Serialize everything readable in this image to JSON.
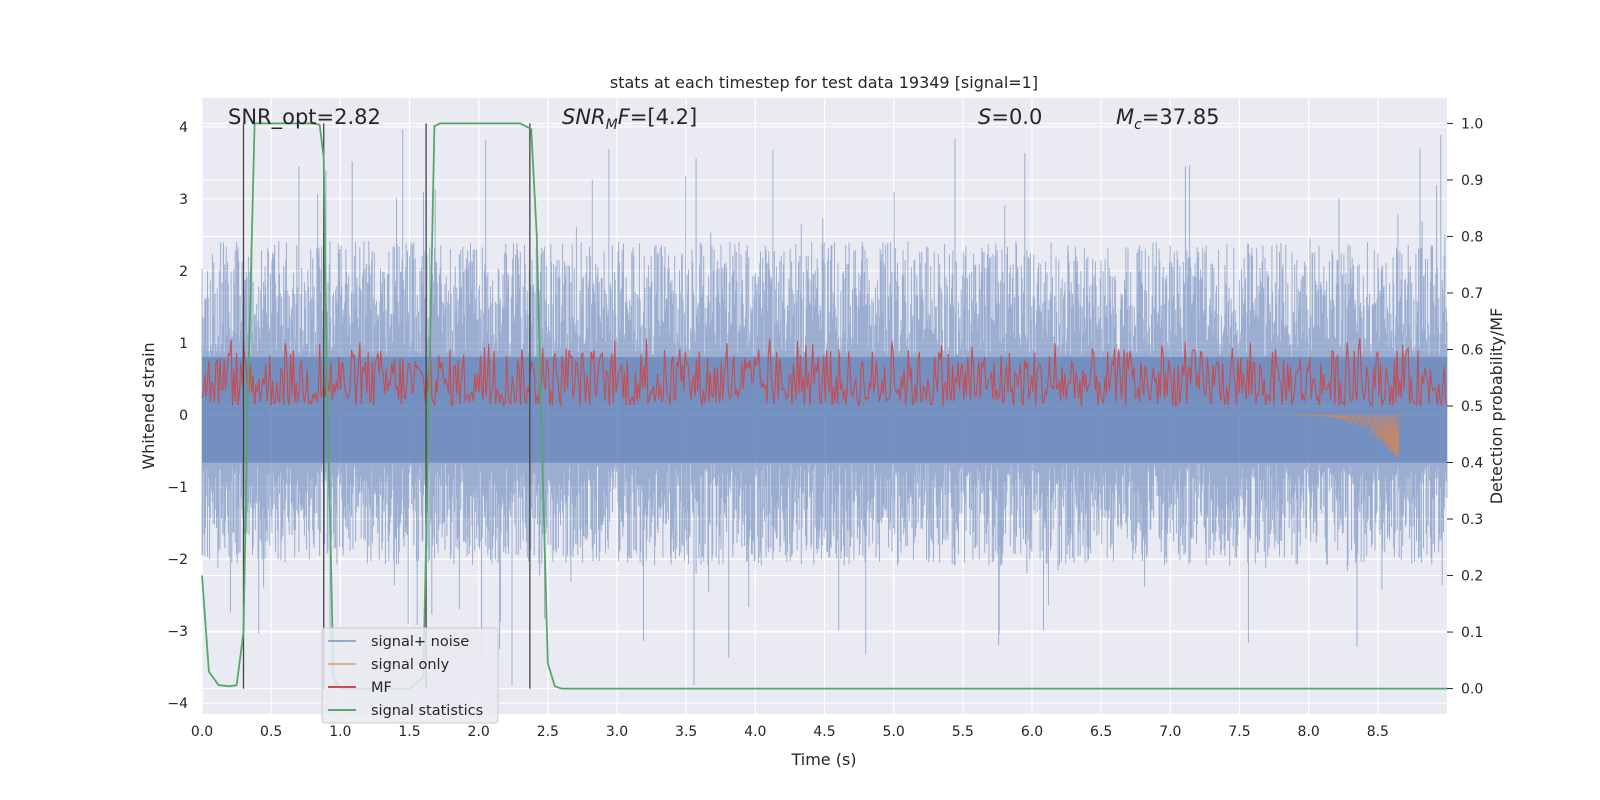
{
  "chart_data": {
    "type": "line",
    "title": "stats at each timestep for test data 19349 [signal=1]",
    "xlabel": "Time (s)",
    "ylabel": "Whitened strain",
    "y2label": "Detection probability/MF",
    "xlim": [
      0.0,
      9.0
    ],
    "ylim": [
      -4.15,
      4.4
    ],
    "y2lim": [
      -0.045,
      1.045
    ],
    "xticks": [
      0.0,
      0.5,
      1.0,
      1.5,
      2.0,
      2.5,
      3.0,
      3.5,
      4.0,
      4.5,
      5.0,
      5.5,
      6.0,
      6.5,
      7.0,
      7.5,
      8.0,
      8.5
    ],
    "xtick_labels": [
      "0.0",
      "0.5",
      "1.0",
      "1.5",
      "2.0",
      "2.5",
      "3.0",
      "3.5",
      "4.0",
      "4.5",
      "5.0",
      "5.5",
      "6.0",
      "6.5",
      "7.0",
      "7.5",
      "8.0",
      "8.5"
    ],
    "yticks": [
      -4,
      -3,
      -2,
      -1,
      0,
      1,
      2,
      3,
      4
    ],
    "ytick_labels": [
      "−4",
      "−3",
      "−2",
      "−1",
      "0",
      "1",
      "2",
      "3",
      "4"
    ],
    "y2ticks": [
      0.0,
      0.1,
      0.2,
      0.3,
      0.4,
      0.5,
      0.6,
      0.7,
      0.8,
      0.9,
      1.0
    ],
    "y2tick_labels": [
      "0.0",
      "0.1",
      "0.2",
      "0.3",
      "0.4",
      "0.5",
      "0.6",
      "0.7",
      "0.8",
      "0.9",
      "1.0"
    ],
    "annotations": {
      "snr_opt": "SNR_opt=2.82",
      "snr_mf": "=[4.2]",
      "s": "=0.0",
      "mc": "=37.85"
    },
    "series": [
      {
        "name": "signal+ noise",
        "color": "#4c72b0",
        "axis": "left",
        "envelope": {
          "upper_typical": 2.3,
          "upper_peak": 4.0,
          "lower_typical": -1.9,
          "lower_peak": -3.8
        }
      },
      {
        "name": "signal only",
        "color": "#dd8452",
        "axis": "left",
        "chirp": {
          "start": 7.9,
          "merger": 8.65,
          "peak_amplitude": -0.65
        }
      },
      {
        "name": "MF",
        "color": "#c44e52",
        "axis": "right",
        "range": [
          0.5,
          0.62
        ]
      },
      {
        "name": "signal statistics",
        "color": "#55a868",
        "axis": "right",
        "x": [
          0.0,
          0.05,
          0.12,
          0.2,
          0.25,
          0.3,
          0.33,
          0.38,
          0.42,
          0.8,
          0.85,
          0.88,
          0.9,
          0.95,
          1.0,
          1.5,
          1.6,
          1.64,
          1.68,
          1.72,
          1.8,
          2.3,
          2.38,
          2.42,
          2.45,
          2.5,
          2.55,
          2.6,
          2.7,
          9.0
        ],
        "y": [
          0.2,
          0.03,
          0.006,
          0.004,
          0.006,
          0.1,
          0.5,
          1.0,
          1.0,
          1.0,
          0.998,
          0.94,
          0.6,
          0.02,
          0.0,
          0.0,
          0.02,
          0.5,
          0.995,
          1.0,
          1.0,
          1.0,
          0.99,
          0.8,
          0.5,
          0.045,
          0.004,
          0.0,
          0.0,
          0.0
        ]
      }
    ],
    "vlines": [
      0.3,
      0.88,
      1.62,
      2.37
    ],
    "legend": {
      "position": "lower-left",
      "entries": [
        "signal+ noise",
        "signal only",
        "MF",
        "signal statistics"
      ]
    },
    "grid": true,
    "colors": {
      "axes_bg": "#eaeaf2",
      "grid": "#ffffff",
      "text": "#262626",
      "vline": "#444444"
    }
  }
}
